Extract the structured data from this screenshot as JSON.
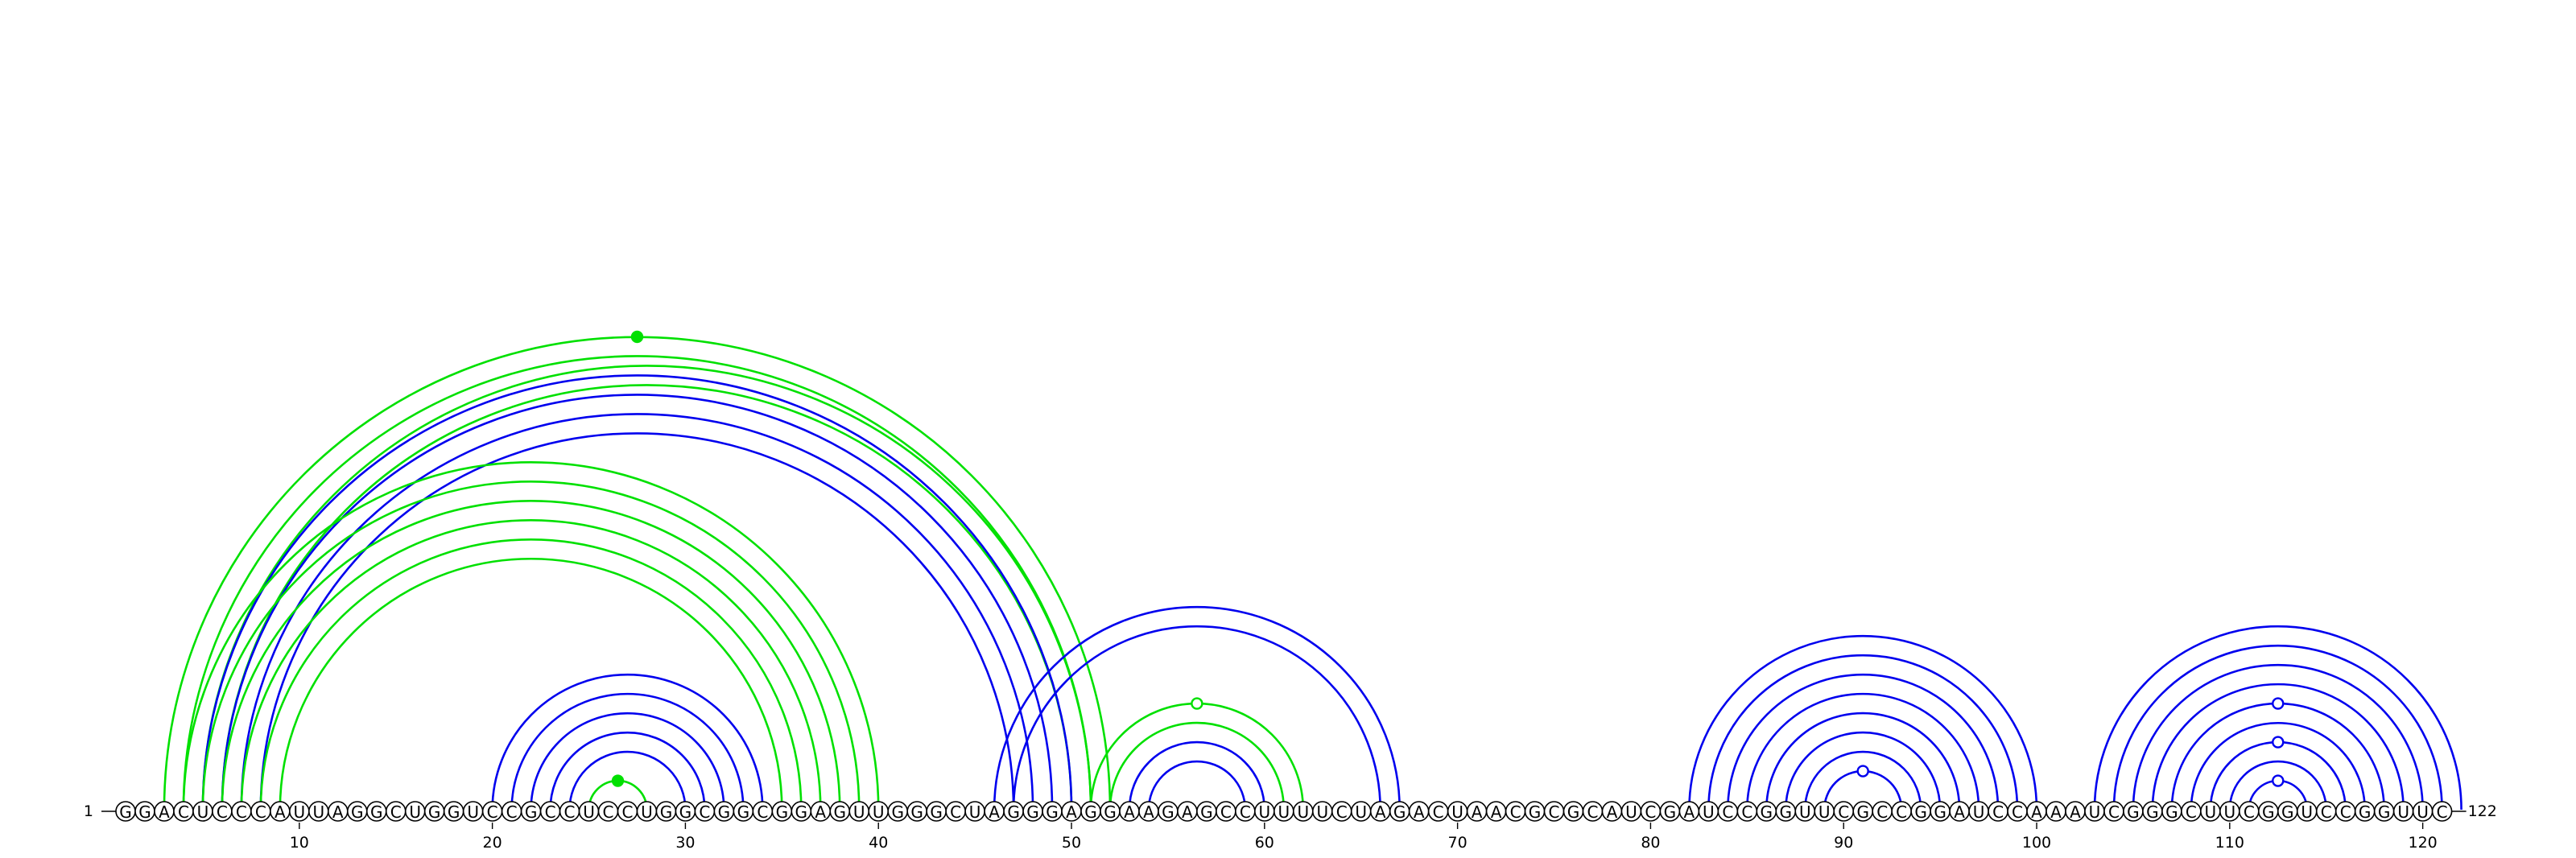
{
  "sequence": "GGACUCCCAUUAGGCUGGUCCGCCUCCUGGCGGCGGAGUUGGGCUAGGGAGGAAGAGCCUUUUCUAGACUAACGCGCAUCGAUCCGGUUCGCCGGAUCCAAAUCGGGCUUCGGUCCGGUUC",
  "start_label": "1",
  "end_label": "122",
  "tick_labels": [
    "10",
    "20",
    "30",
    "40",
    "50",
    "60",
    "70",
    "80",
    "90",
    "100",
    "110",
    "120"
  ],
  "colors": {
    "blue": "#0000ee",
    "green": "#00e000",
    "letters": "#000000"
  },
  "arc_groups": [
    {
      "color": "green",
      "pairs": [
        [
          3,
          52
        ],
        [
          4,
          51
        ]
      ]
    },
    {
      "color": "green",
      "pairs": [
        [
          5,
          51
        ],
        [
          6,
          50
        ]
      ]
    },
    {
      "color": "blue",
      "pairs": [
        [
          5,
          50
        ],
        [
          6,
          49
        ],
        [
          7,
          48
        ],
        [
          8,
          47
        ]
      ]
    },
    {
      "color": "green",
      "pairs": [
        [
          4,
          40
        ],
        [
          5,
          39
        ],
        [
          6,
          38
        ],
        [
          7,
          37
        ],
        [
          8,
          36
        ],
        [
          9,
          35
        ]
      ]
    },
    {
      "color": "blue",
      "pairs": [
        [
          20,
          34
        ],
        [
          21,
          33
        ],
        [
          22,
          32
        ],
        [
          23,
          31
        ],
        [
          24,
          30
        ]
      ]
    },
    {
      "color": "green",
      "pairs": [
        [
          25,
          28
        ]
      ]
    },
    {
      "color": "blue",
      "pairs": [
        [
          46,
          67
        ],
        [
          47,
          66
        ]
      ]
    },
    {
      "color": "green",
      "pairs": [
        [
          51,
          62
        ],
        [
          52,
          61
        ]
      ]
    },
    {
      "color": "blue",
      "pairs": [
        [
          53,
          60
        ],
        [
          54,
          59
        ]
      ]
    },
    {
      "color": "blue",
      "pairs": [
        [
          82,
          100
        ],
        [
          83,
          99
        ],
        [
          84,
          98
        ],
        [
          85,
          97
        ],
        [
          86,
          96
        ],
        [
          87,
          95
        ],
        [
          88,
          94
        ],
        [
          89,
          93
        ]
      ]
    },
    {
      "color": "blue",
      "pairs": [
        [
          103,
          122
        ],
        [
          104,
          121
        ],
        [
          105,
          120
        ],
        [
          106,
          119
        ],
        [
          107,
          118
        ],
        [
          108,
          117
        ],
        [
          109,
          116
        ],
        [
          110,
          115
        ],
        [
          111,
          114
        ]
      ]
    }
  ],
  "markers": [
    {
      "color": "green",
      "filled": true,
      "at": 27.5,
      "group": 0
    },
    {
      "color": "green",
      "filled": true,
      "at": 26.5,
      "group": 5
    },
    {
      "color": "green",
      "filled": false,
      "at": 56.5,
      "group": 7
    },
    {
      "color": "blue",
      "filled": false,
      "at": 91,
      "group": 9
    },
    {
      "color": "blue",
      "filled": false,
      "at": 112.5,
      "group": 10
    }
  ]
}
